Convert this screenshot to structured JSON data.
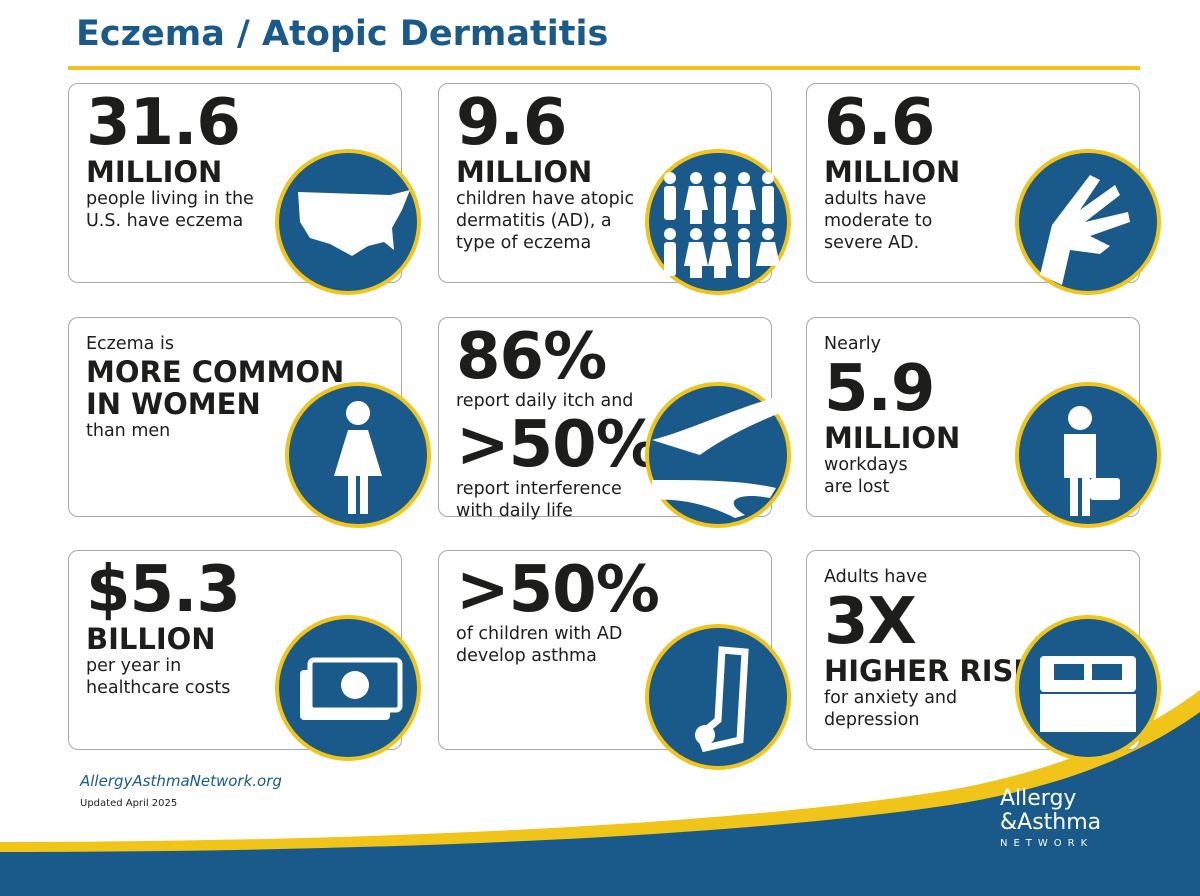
{
  "header": {
    "title": "Eczema / Atopic Dermatitis"
  },
  "cards": [
    {
      "lines": [
        "31.6",
        "MILLION",
        "people living in the",
        "U.S. have eczema"
      ]
    },
    {
      "lines": [
        "9.6",
        "MILLION",
        "children have atopic",
        "dermatitis (AD), a",
        "type of eczema"
      ]
    },
    {
      "lines": [
        "6.6",
        "MILLION",
        "adults have",
        "moderate to",
        "severe AD."
      ]
    },
    {
      "lines": [
        "Eczema is",
        "MORE COMMON",
        "IN WOMEN",
        "than men"
      ]
    },
    {
      "lines": [
        "86%",
        "report daily itch and",
        ">50%",
        "report interference",
        "with daily life"
      ]
    },
    {
      "lines": [
        "Nearly",
        "5.9",
        "MILLION",
        "workdays",
        "are lost"
      ]
    },
    {
      "lines": [
        "$5.3",
        "BILLION",
        "per year in",
        "healthcare costs"
      ]
    },
    {
      "lines": [
        ">50%",
        "of children with AD",
        "develop asthma"
      ]
    },
    {
      "lines": [
        "Adults have",
        "3X",
        "HIGHER RISK",
        "for anxiety and",
        "depression"
      ]
    }
  ],
  "footer": {
    "website": "AllergyAsthmaNetwork.org",
    "updated": "Updated April 2025",
    "logo": [
      "Allergy",
      "&Asthma",
      "NETWORK"
    ]
  }
}
